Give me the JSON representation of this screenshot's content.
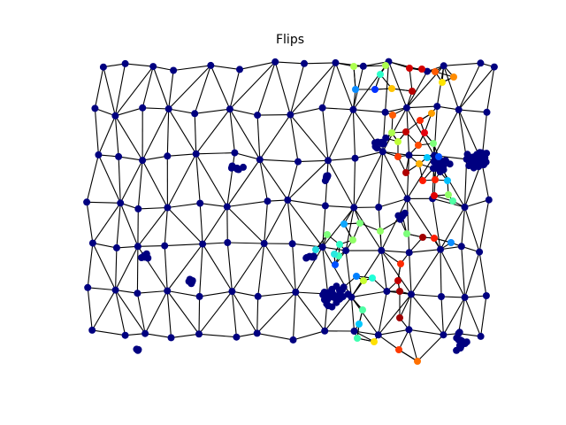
{
  "figure": {
    "title": "Flips",
    "colormap": "jet",
    "background": "#ffffff",
    "edge_color": "#000000",
    "default_node_color": "#000080"
  }
}
